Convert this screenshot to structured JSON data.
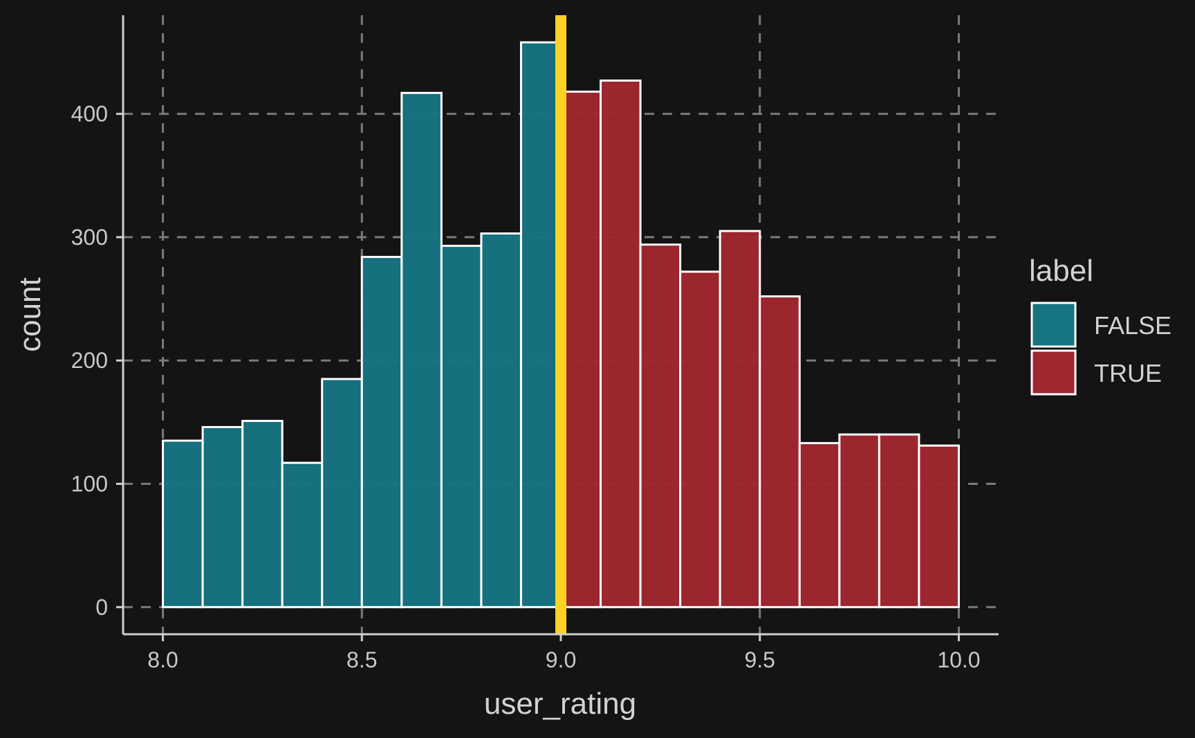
{
  "chart_data": {
    "type": "bar",
    "subtype": "histogram",
    "xlabel": "user_rating",
    "ylabel": "count",
    "xlim": [
      7.9,
      10.1
    ],
    "ylim": [
      -22,
      480
    ],
    "x_ticks": [
      8.0,
      8.5,
      9.0,
      9.5,
      10.0
    ],
    "x_tick_labels": [
      "8.0",
      "8.5",
      "9.0",
      "9.5",
      "10.0"
    ],
    "y_ticks": [
      0,
      100,
      200,
      300,
      400
    ],
    "y_tick_labels": [
      "0",
      "100",
      "200",
      "300",
      "400"
    ],
    "grid": true,
    "bin_width": 0.1,
    "bins": [
      {
        "x0": 8.0,
        "x1": 8.1,
        "count": 135,
        "label": "FALSE"
      },
      {
        "x0": 8.1,
        "x1": 8.2,
        "count": 146,
        "label": "FALSE"
      },
      {
        "x0": 8.2,
        "x1": 8.3,
        "count": 151,
        "label": "FALSE"
      },
      {
        "x0": 8.3,
        "x1": 8.4,
        "count": 117,
        "label": "FALSE"
      },
      {
        "x0": 8.4,
        "x1": 8.5,
        "count": 185,
        "label": "FALSE"
      },
      {
        "x0": 8.5,
        "x1": 8.6,
        "count": 284,
        "label": "FALSE"
      },
      {
        "x0": 8.6,
        "x1": 8.7,
        "count": 417,
        "label": "FALSE"
      },
      {
        "x0": 8.7,
        "x1": 8.8,
        "count": 293,
        "label": "FALSE"
      },
      {
        "x0": 8.8,
        "x1": 8.9,
        "count": 303,
        "label": "FALSE"
      },
      {
        "x0": 8.9,
        "x1": 9.0,
        "count": 458,
        "label": "FALSE"
      },
      {
        "x0": 9.0,
        "x1": 9.1,
        "count": 418,
        "label": "TRUE"
      },
      {
        "x0": 9.1,
        "x1": 9.2,
        "count": 427,
        "label": "TRUE"
      },
      {
        "x0": 9.2,
        "x1": 9.3,
        "count": 294,
        "label": "TRUE"
      },
      {
        "x0": 9.3,
        "x1": 9.4,
        "count": 272,
        "label": "TRUE"
      },
      {
        "x0": 9.4,
        "x1": 9.5,
        "count": 305,
        "label": "TRUE"
      },
      {
        "x0": 9.5,
        "x1": 9.6,
        "count": 252,
        "label": "TRUE"
      },
      {
        "x0": 9.6,
        "x1": 9.7,
        "count": 133,
        "label": "TRUE"
      },
      {
        "x0": 9.7,
        "x1": 9.8,
        "count": 140,
        "label": "TRUE"
      },
      {
        "x0": 9.8,
        "x1": 9.9,
        "count": 140,
        "label": "TRUE"
      },
      {
        "x0": 9.9,
        "x1": 10.0,
        "count": 131,
        "label": "TRUE"
      }
    ],
    "vline": {
      "x": 9.0,
      "color": "#FDD225"
    },
    "legend": {
      "title": "label",
      "placement": "right",
      "entries": [
        {
          "name": "FALSE",
          "color": "#177482"
        },
        {
          "name": "TRUE",
          "color": "#A02730"
        }
      ]
    },
    "colors": {
      "background": "#141414",
      "grid": "#7a7a7a",
      "axis": "#cfcfcf",
      "bar_outline": "#ffffff"
    }
  }
}
